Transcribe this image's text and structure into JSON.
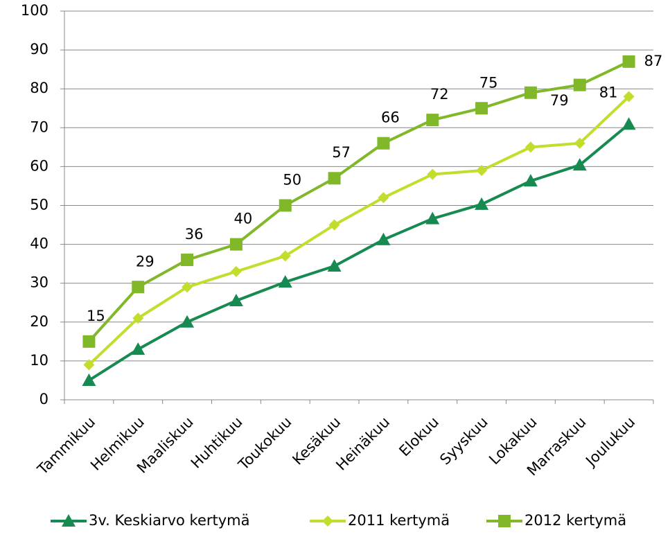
{
  "chart_data": {
    "type": "line",
    "categories": [
      "Tammikuu",
      "Helmikuu",
      "Maaliskuu",
      "Huhtikuu",
      "Toukokuu",
      "Kesäkuu",
      "Heinäkuu",
      "Elokuu",
      "Syyskuu",
      "Lokakuu",
      "Marraskuu",
      "Joulukuu"
    ],
    "series": [
      {
        "name": "3v. Keskiarvo kertymä",
        "color": "#178a52",
        "marker": "triangle",
        "data_labels": false,
        "values": [
          5,
          13,
          20,
          25.5,
          30.3,
          34.4,
          41.2,
          46.6,
          50.3,
          56.3,
          60.4,
          70.9
        ]
      },
      {
        "name": "2011 kertymä",
        "color": "#c4dc2c",
        "marker": "diamond",
        "data_labels": false,
        "values": [
          9,
          21,
          29,
          33,
          37,
          45,
          52,
          58,
          59,
          65,
          66,
          78
        ]
      },
      {
        "name": "2012 kertymä",
        "color": "#80b82a",
        "marker": "square",
        "data_labels": true,
        "values": [
          15,
          29,
          36,
          40,
          50,
          57,
          66,
          72,
          75,
          79,
          81,
          87
        ]
      }
    ],
    "ylim": [
      0,
      100
    ],
    "yticks": [
      0,
      10,
      20,
      30,
      40,
      50,
      60,
      70,
      80,
      90,
      100
    ],
    "grid": true,
    "legend": "bottom"
  }
}
